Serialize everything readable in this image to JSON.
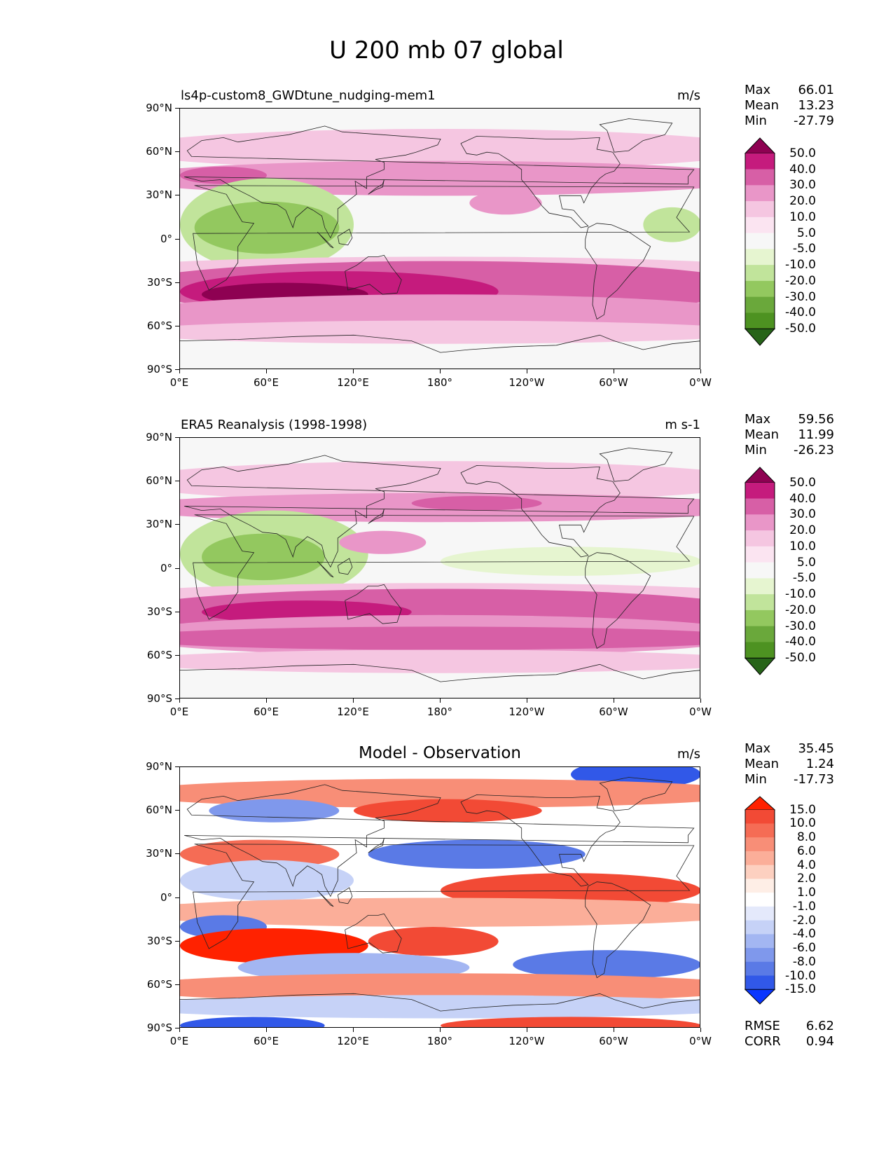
{
  "title": "U 200 mb 07 global",
  "axes": {
    "lat_labels": [
      "90°N",
      "60°N",
      "30°N",
      "0°",
      "30°S",
      "60°S",
      "90°S"
    ],
    "lon_labels": [
      "0°E",
      "60°E",
      "120°E",
      "180°",
      "120°W",
      "60°W",
      "0°W"
    ]
  },
  "panels": [
    {
      "label": "ls4p-custom8_GWDtune_nudging-mem1",
      "unit": "m/s",
      "stats": {
        "max_label": "Max",
        "max": "66.01",
        "mean_label": "Mean",
        "mean": "13.23",
        "min_label": "Min",
        "min": "-27.79"
      },
      "colorbar": {
        "labels": [
          "50.0",
          "40.0",
          "30.0",
          "20.0",
          "10.0",
          "5.0",
          "-5.0",
          "-10.0",
          "-20.0",
          "-30.0",
          "-40.0",
          "-50.0"
        ],
        "colors": [
          "#8e0152",
          "#c51b7d",
          "#d75fa6",
          "#e996c8",
          "#f5c6e1",
          "#fbe4f1",
          "#f7f7f7",
          "#e6f5d0",
          "#c1e49b",
          "#93c85f",
          "#6aa83b",
          "#4d9221",
          "#276419"
        ]
      }
    },
    {
      "label": "ERA5 Reanalysis (1998-1998)",
      "unit": "m s-1",
      "stats": {
        "max_label": "Max",
        "max": "59.56",
        "mean_label": "Mean",
        "mean": "11.99",
        "min_label": "Min",
        "min": "-26.23"
      },
      "colorbar": {
        "labels": [
          "50.0",
          "40.0",
          "30.0",
          "20.0",
          "10.0",
          "5.0",
          "-5.0",
          "-10.0",
          "-20.0",
          "-30.0",
          "-40.0",
          "-50.0"
        ],
        "colors": [
          "#8e0152",
          "#c51b7d",
          "#d75fa6",
          "#e996c8",
          "#f5c6e1",
          "#fbe4f1",
          "#f7f7f7",
          "#e6f5d0",
          "#c1e49b",
          "#93c85f",
          "#6aa83b",
          "#4d9221",
          "#276419"
        ]
      }
    },
    {
      "label": "Model - Observation",
      "unit": "m/s",
      "stats": {
        "max_label": "Max",
        "max": "35.45",
        "mean_label": "Mean",
        "mean": "1.24",
        "min_label": "Min",
        "min": "-17.73"
      },
      "colorbar": {
        "labels": [
          "15.0",
          "10.0",
          "8.0",
          "6.0",
          "4.0",
          "2.0",
          "1.0",
          "-1.0",
          "-2.0",
          "-4.0",
          "-6.0",
          "-8.0",
          "-10.0",
          "-15.0"
        ],
        "colors": [
          "#ff2200",
          "#f24a35",
          "#f56c55",
          "#f88e77",
          "#fbae99",
          "#fdd0c0",
          "#feeee6",
          "#ffffff",
          "#e4e9fb",
          "#c6d2f7",
          "#a3b6f2",
          "#7f98ec",
          "#5a7ae6",
          "#3158e8",
          "#0a36ff"
        ]
      },
      "extra": {
        "rmse_label": "RMSE",
        "rmse": "6.62",
        "corr_label": "CORR",
        "corr": "0.94"
      }
    }
  ]
}
